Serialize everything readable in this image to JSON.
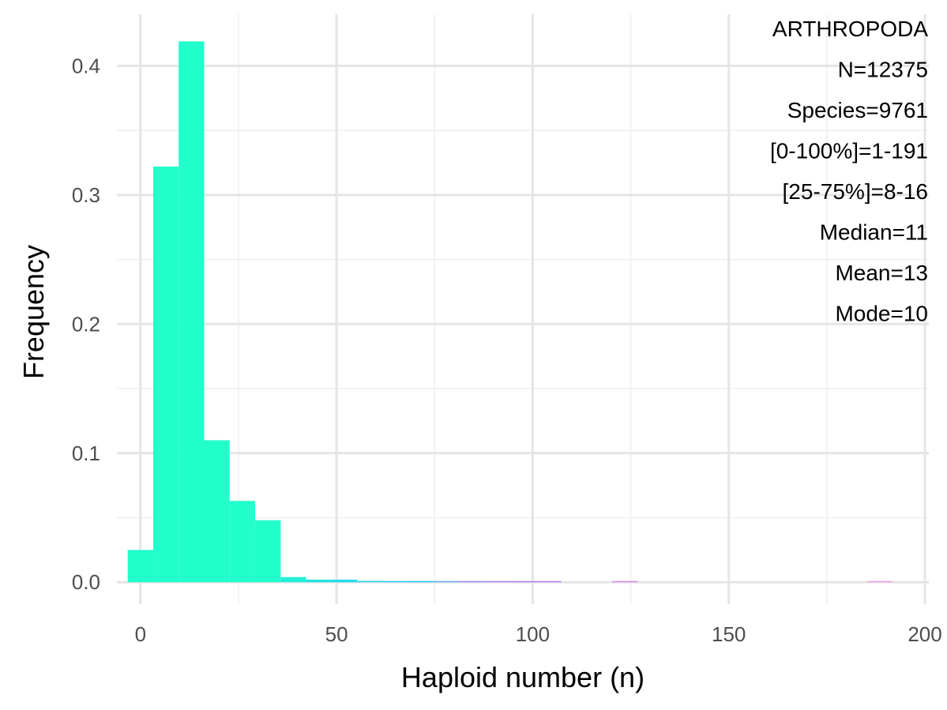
{
  "chart_data": {
    "type": "bar",
    "xlabel": "Haploid number (n)",
    "ylabel": "Frequency",
    "xlim": [
      -6,
      201
    ],
    "ylim": [
      -0.017,
      0.44
    ],
    "x_ticks": [
      0,
      50,
      100,
      150,
      200
    ],
    "x_tick_labels": [
      "0",
      "50",
      "100",
      "150",
      "200"
    ],
    "y_ticks": [
      0.0,
      0.1,
      0.2,
      0.3,
      0.4
    ],
    "y_tick_labels": [
      "0.0",
      "0.1",
      "0.2",
      "0.3",
      "0.4"
    ],
    "grid": true,
    "legend": "none",
    "bin_width": 6.5,
    "bins": [
      {
        "x": 0,
        "y": 0.025,
        "color": "#22FFCC"
      },
      {
        "x": 6.5,
        "y": 0.322,
        "color": "#22FFCC"
      },
      {
        "x": 13,
        "y": 0.419,
        "color": "#22FFCC"
      },
      {
        "x": 19.5,
        "y": 0.11,
        "color": "#22FFCC"
      },
      {
        "x": 26,
        "y": 0.063,
        "color": "#22FFCC"
      },
      {
        "x": 32.5,
        "y": 0.048,
        "color": "#22FFCC"
      },
      {
        "x": 39,
        "y": 0.004,
        "color": "#22F0D8"
      },
      {
        "x": 45.5,
        "y": 0.002,
        "color": "#22E4E0"
      },
      {
        "x": 52,
        "y": 0.002,
        "color": "#22DCE8"
      },
      {
        "x": 58.5,
        "y": 0.001,
        "color": "#22D4EC"
      },
      {
        "x": 65,
        "y": 0.0006,
        "color": "#22CCEE"
      },
      {
        "x": 71.5,
        "y": 0.0004,
        "color": "#22C4F0"
      },
      {
        "x": 78,
        "y": 0.0003,
        "color": "#66A8F4"
      },
      {
        "x": 84.5,
        "y": 0.0008,
        "color": "#9A88F6"
      },
      {
        "x": 91,
        "y": 0.0005,
        "color": "#A880F6"
      },
      {
        "x": 97.5,
        "y": 0.0004,
        "color": "#B078F6"
      },
      {
        "x": 104,
        "y": 0.0004,
        "color": "#B878F6"
      },
      {
        "x": 123.5,
        "y": 0.0002,
        "color": "#D888F2"
      },
      {
        "x": 188.5,
        "y": 0.0002,
        "color": "#F0A0E8"
      }
    ],
    "annotations": [
      "ARTHROPODA",
      "N=12375",
      "Species=9761",
      "[0-100%]=1-191",
      "[25-75%]=8-16",
      "Median=11",
      "Mean=13",
      "Mode=10"
    ]
  }
}
